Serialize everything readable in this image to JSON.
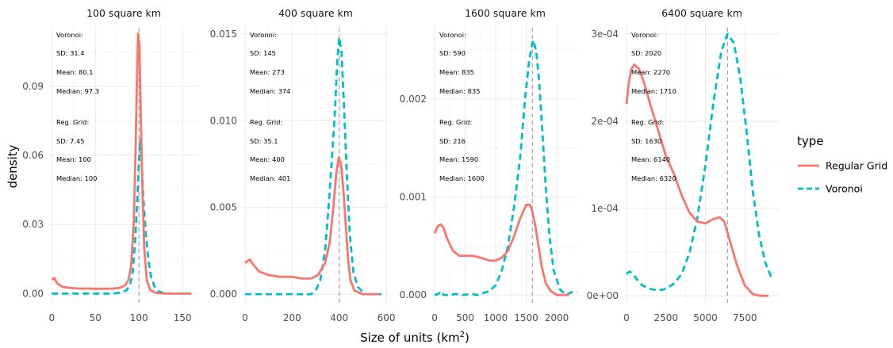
{
  "chart_data": {
    "type": "line",
    "xlabel": "Size of units (km",
    "xlabel_sup": "2",
    "xlabel_close": ")",
    "ylabel": "density",
    "legend": {
      "title": "type",
      "position": "right",
      "items": [
        {
          "name": "Regular Grid",
          "color": "#F8766D",
          "dash": "solid"
        },
        {
          "name": "Voronoi",
          "color": "#00BFC4",
          "dash": "dashed"
        }
      ]
    },
    "grid": true,
    "reference_line_color": "#9a9a9a",
    "panels": [
      {
        "title": "100 square km",
        "xlim": [
          -3,
          168
        ],
        "ylim": [
          -0.004,
          0.1165
        ],
        "xticks": [
          0,
          50,
          100,
          150
        ],
        "xtick_labels": [
          "0",
          "50",
          "100",
          "150"
        ],
        "yticks": [
          0.0,
          0.03,
          0.06,
          0.09
        ],
        "ytick_labels": [
          "0.00",
          "0.03",
          "0.06",
          "0.09"
        ],
        "vline": 100,
        "annotations": [
          "Voronoi:",
          "SD: 31.4",
          "Mean: 80.1",
          "Median: 97.3",
          "Reg. Grid:",
          "SD: 7.45",
          "Mean: 100",
          "Median: 100"
        ],
        "series": [
          {
            "name": "Regular Grid",
            "points": [
              [
                0,
                0.006
              ],
              [
                3,
                0.0068
              ],
              [
                6,
                0.0045
              ],
              [
                12,
                0.003
              ],
              [
                20,
                0.0025
              ],
              [
                30,
                0.0022
              ],
              [
                40,
                0.0022
              ],
              [
                50,
                0.0021
              ],
              [
                60,
                0.0021
              ],
              [
                70,
                0.0022
              ],
              [
                78,
                0.0025
              ],
              [
                84,
                0.0035
              ],
              [
                88,
                0.006
              ],
              [
                91,
                0.012
              ],
              [
                94,
                0.03
              ],
              [
                96,
                0.06
              ],
              [
                97.5,
                0.09
              ],
              [
                99,
                0.113
              ],
              [
                100.5,
                0.108
              ],
              [
                102,
                0.08
              ],
              [
                104,
                0.045
              ],
              [
                106,
                0.02
              ],
              [
                109,
                0.006
              ],
              [
                113,
                0.0015
              ],
              [
                120,
                0.0003
              ],
              [
                130,
                0.0
              ],
              [
                160,
                0.0
              ]
            ]
          },
          {
            "name": "Voronoi",
            "points": [
              [
                0,
                0.0
              ],
              [
                40,
                0.0
              ],
              [
                70,
                0.0
              ],
              [
                80,
                0.0005
              ],
              [
                86,
                0.0015
              ],
              [
                90,
                0.004
              ],
              [
                93,
                0.01
              ],
              [
                96,
                0.025
              ],
              [
                98,
                0.04
              ],
              [
                100,
                0.057
              ],
              [
                101.5,
                0.067
              ],
              [
                103,
                0.058
              ],
              [
                105,
                0.042
              ],
              [
                108,
                0.025
              ],
              [
                111,
                0.014
              ],
              [
                114,
                0.007
              ],
              [
                118,
                0.003
              ],
              [
                122,
                0.001
              ],
              [
                130,
                0.0002
              ],
              [
                140,
                0.0
              ],
              [
                160,
                0.0
              ]
            ]
          }
        ]
      },
      {
        "title": "400 square km",
        "xlim": [
          -10,
          610
        ],
        "ylim": [
          -0.0005,
          0.0155
        ],
        "xticks": [
          0,
          200,
          400,
          600
        ],
        "xtick_labels": [
          "0",
          "200",
          "400",
          "600"
        ],
        "yticks": [
          0.0,
          0.005,
          0.01,
          0.015
        ],
        "ytick_labels": [
          "0.000",
          "0.005",
          "0.010",
          "0.015"
        ],
        "vline": 400,
        "annotations": [
          "Voronoi:",
          "SD: 145",
          "Mean: 273",
          "Median: 374",
          "Reg. Grid:",
          "SD: 35.1",
          "Mean: 400",
          "Median: 401"
        ],
        "series": [
          {
            "name": "Regular Grid",
            "points": [
              [
                0,
                0.0018
              ],
              [
                10,
                0.0019
              ],
              [
                20,
                0.002
              ],
              [
                35,
                0.0017
              ],
              [
                60,
                0.0013
              ],
              [
                100,
                0.0011
              ],
              [
                150,
                0.001
              ],
              [
                200,
                0.001
              ],
              [
                240,
                0.0009
              ],
              [
                280,
                0.0009
              ],
              [
                310,
                0.0011
              ],
              [
                340,
                0.0018
              ],
              [
                360,
                0.003
              ],
              [
                375,
                0.005
              ],
              [
                388,
                0.007
              ],
              [
                398,
                0.0079
              ],
              [
                408,
                0.0075
              ],
              [
                418,
                0.006
              ],
              [
                428,
                0.004
              ],
              [
                438,
                0.002
              ],
              [
                448,
                0.0008
              ],
              [
                465,
                0.0002
              ],
              [
                500,
                0.0
              ],
              [
                570,
                0.0
              ]
            ]
          },
          {
            "name": "Voronoi",
            "points": [
              [
                0,
                0.0
              ],
              [
                100,
                0.0
              ],
              [
                200,
                0.0
              ],
              [
                280,
                0.0
              ],
              [
                300,
                0.0002
              ],
              [
                320,
                0.0008
              ],
              [
                340,
                0.0025
              ],
              [
                355,
                0.005
              ],
              [
                370,
                0.008
              ],
              [
                382,
                0.0105
              ],
              [
                392,
                0.0135
              ],
              [
                400,
                0.0148
              ],
              [
                410,
                0.014
              ],
              [
                420,
                0.011
              ],
              [
                432,
                0.007
              ],
              [
                445,
                0.0035
              ],
              [
                460,
                0.0013
              ],
              [
                480,
                0.0004
              ],
              [
                510,
                0.0
              ],
              [
                580,
                0.0
              ]
            ]
          }
        ]
      },
      {
        "title": "1600 square km",
        "xlim": [
          -40,
          2350
        ],
        "ylim": [
          -8e-05,
          0.00275
        ],
        "xticks": [
          0,
          500,
          1000,
          1500,
          2000
        ],
        "xtick_labels": [
          "0",
          "500",
          "1000",
          "1500",
          "2000"
        ],
        "yticks": [
          0.0,
          0.001,
          0.002
        ],
        "ytick_labels": [
          "0.000",
          "0.001",
          "0.002"
        ],
        "vline": 1600,
        "annotations": [
          "Voronoi:",
          "SD: 590",
          "Mean: 835",
          "Median: 835",
          "Reg. Grid:",
          "SD: 216",
          "Mean: 1590",
          "Median: 1600"
        ],
        "series": [
          {
            "name": "Regular Grid",
            "points": [
              [
                0,
                0.00063
              ],
              [
                50,
                0.0007
              ],
              [
                100,
                0.00072
              ],
              [
                150,
                0.00068
              ],
              [
                200,
                0.00058
              ],
              [
                300,
                0.00045
              ],
              [
                400,
                0.0004
              ],
              [
                500,
                0.0004
              ],
              [
                600,
                0.0004
              ],
              [
                700,
                0.00039
              ],
              [
                800,
                0.00037
              ],
              [
                900,
                0.00035
              ],
              [
                1000,
                0.00035
              ],
              [
                1100,
                0.00038
              ],
              [
                1200,
                0.00045
              ],
              [
                1300,
                0.0006
              ],
              [
                1400,
                0.00078
              ],
              [
                1500,
                0.00092
              ],
              [
                1560,
                0.00092
              ],
              [
                1600,
                0.00085
              ],
              [
                1650,
                0.0007
              ],
              [
                1700,
                0.0005
              ],
              [
                1750,
                0.0003
              ],
              [
                1820,
                0.00012
              ],
              [
                1900,
                4e-05
              ],
              [
                2000,
                0.0
              ],
              [
                2200,
                0.0
              ]
            ]
          },
          {
            "name": "Voronoi",
            "points": [
              [
                0,
                0.0
              ],
              [
                60,
                1e-05
              ],
              [
                100,
                4e-05
              ],
              [
                150,
                0.0
              ],
              [
                250,
                0.0
              ],
              [
                350,
                1e-05
              ],
              [
                450,
                0.0
              ],
              [
                600,
                1e-05
              ],
              [
                700,
                0.0
              ],
              [
                800,
                2e-05
              ],
              [
                900,
                4e-05
              ],
              [
                1000,
                0.0001
              ],
              [
                1100,
                0.00025
              ],
              [
                1200,
                0.0005
              ],
              [
                1300,
                0.0009
              ],
              [
                1400,
                0.0014
              ],
              [
                1480,
                0.002
              ],
              [
                1550,
                0.0024
              ],
              [
                1610,
                0.0026
              ],
              [
                1660,
                0.0025
              ],
              [
                1710,
                0.0022
              ],
              [
                1760,
                0.0017
              ],
              [
                1820,
                0.0011
              ],
              [
                1880,
                0.0006
              ],
              [
                1950,
                0.00025
              ],
              [
                2050,
                6e-05
              ],
              [
                2150,
                0.0
              ],
              [
                2250,
                3e-05
              ],
              [
                2330,
                3e-05
              ]
            ]
          }
        ]
      },
      {
        "title": "6400 square km",
        "xlim": [
          -150,
          9700
        ],
        "ylim": [
          -8e-06,
          0.00031
        ],
        "xticks": [
          0,
          2500,
          5000,
          7500
        ],
        "xtick_labels": [
          "0",
          "2500",
          "5000",
          "7500"
        ],
        "yticks": [
          0.0,
          0.0001,
          0.0002,
          0.0003
        ],
        "ytick_labels": [
          "0e+00",
          "1e-04",
          "2e-04",
          "3e-04"
        ],
        "vline": 6400,
        "annotations": [
          "Voronoi:",
          "SD: 2020",
          "Mean: 2270",
          "Median: 1710",
          "Reg. Grid:",
          "SD: 1630",
          "Mean: 6140",
          "Median: 6320"
        ],
        "series": [
          {
            "name": "Regular Grid",
            "points": [
              [
                0,
                0.00022
              ],
              [
                150,
                0.000245
              ],
              [
                300,
                0.00026
              ],
              [
                500,
                0.000265
              ],
              [
                800,
                0.00026
              ],
              [
                1100,
                0.000245
              ],
              [
                1500,
                0.00022
              ],
              [
                2000,
                0.00019
              ],
              [
                2500,
                0.00016
              ],
              [
                3000,
                0.00014
              ],
              [
                3500,
                0.000115
              ],
              [
                4000,
                9.5e-05
              ],
              [
                4500,
                8.5e-05
              ],
              [
                5000,
                8.3e-05
              ],
              [
                5500,
                8.8e-05
              ],
              [
                5900,
                9e-05
              ],
              [
                6200,
                8.5e-05
              ],
              [
                6600,
                6e-05
              ],
              [
                7000,
                3.5e-05
              ],
              [
                7500,
                1.2e-05
              ],
              [
                8000,
                2e-06
              ],
              [
                8500,
                0.0
              ],
              [
                9000,
                0.0
              ]
            ]
          },
          {
            "name": "Voronoi",
            "points": [
              [
                0,
                2.5e-05
              ],
              [
                200,
                2.8e-05
              ],
              [
                400,
                2.5e-05
              ],
              [
                700,
                1.8e-05
              ],
              [
                1000,
                1.2e-05
              ],
              [
                1500,
                8e-06
              ],
              [
                2000,
                6e-06
              ],
              [
                2500,
                8e-06
              ],
              [
                3000,
                1.4e-05
              ],
              [
                3500,
                2.5e-05
              ],
              [
                4000,
                5e-05
              ],
              [
                4500,
                9e-05
              ],
              [
                5000,
                0.00015
              ],
              [
                5500,
                0.00022
              ],
              [
                6000,
                0.00028
              ],
              [
                6400,
                0.0003
              ],
              [
                6800,
                0.00029
              ],
              [
                7200,
                0.00025
              ],
              [
                7600,
                0.00019
              ],
              [
                8000,
                0.00012
              ],
              [
                8400,
                7e-05
              ],
              [
                8800,
                3.8e-05
              ],
              [
                9200,
                2e-05
              ]
            ]
          }
        ]
      }
    ]
  }
}
